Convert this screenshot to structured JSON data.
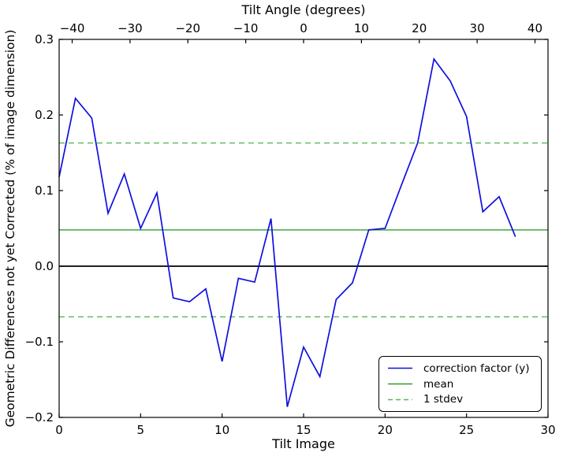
{
  "figure": {
    "background": "#ffffff"
  },
  "chart_data": {
    "type": "line",
    "title": "Tilt Angle (degrees)",
    "xlabel": "Tilt Image",
    "ylabel": "Geometric Differences not yet Corrected (% of image dimension)",
    "xlim": [
      0,
      30
    ],
    "ylim": [
      -0.2,
      0.3
    ],
    "grid": false,
    "x": [
      0,
      1,
      2,
      3,
      4,
      5,
      6,
      7,
      8,
      9,
      10,
      11,
      12,
      13,
      14,
      15,
      16,
      17,
      18,
      19,
      20,
      21,
      22,
      23,
      24,
      25,
      26,
      27,
      28
    ],
    "series": [
      {
        "name": "correction factor (y)",
        "color": "#0f0fe0",
        "values": [
          0.118,
          0.222,
          0.196,
          0.07,
          0.122,
          0.05,
          0.097,
          -0.042,
          -0.047,
          -0.03,
          -0.126,
          -0.016,
          -0.021,
          0.063,
          -0.186,
          -0.107,
          -0.146,
          -0.044,
          -0.022,
          0.048,
          0.05,
          0.107,
          0.163,
          0.274,
          0.245,
          0.198,
          0.072,
          0.092,
          0.039
        ]
      }
    ],
    "reference_lines": {
      "zero": {
        "value": 0.0,
        "color": "#000000"
      },
      "mean": {
        "value": 0.048,
        "color": "#2e9e2e"
      },
      "stdev_upper": {
        "value": 0.163,
        "color": "#57b757"
      },
      "stdev_lower": {
        "value": -0.067,
        "color": "#57b757"
      }
    },
    "stdev": 0.115,
    "x_ticks": {
      "values": [
        0,
        5,
        10,
        15,
        20,
        25,
        30
      ],
      "labels": [
        "0",
        "5",
        "10",
        "15",
        "20",
        "25",
        "30"
      ]
    },
    "y_ticks": {
      "values": [
        0.3,
        0.2,
        0.1,
        0.0,
        -0.1,
        -0.2
      ],
      "labels": [
        "0.3",
        "0.2",
        "0.1",
        "0.0",
        "−0.1",
        "−0.2"
      ]
    },
    "top_axis": {
      "label": "Tilt Angle (degrees)",
      "tick_values": [
        -40,
        -30,
        -20,
        -10,
        0,
        10,
        20,
        30,
        40
      ],
      "tick_labels": [
        "−40",
        "−30",
        "−20",
        "−10",
        "0",
        "10",
        "20",
        "30",
        "40"
      ],
      "image_at_zero_deg": 15,
      "images_per_degree": 0.355
    },
    "legend": {
      "position": "lower right",
      "items": [
        {
          "label": "correction factor (y)",
          "color": "#0f0fe0",
          "style": "solid"
        },
        {
          "label": "mean",
          "color": "#2e9e2e",
          "style": "solid"
        },
        {
          "label": "1 stdev",
          "color": "#57b757",
          "style": "dashed"
        }
      ]
    }
  }
}
